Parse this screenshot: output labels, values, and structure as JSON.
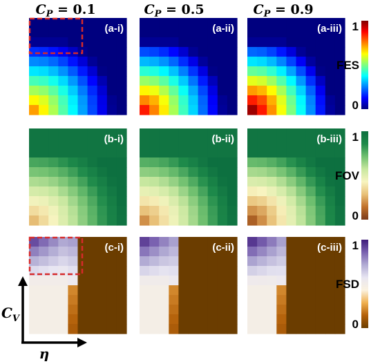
{
  "chart_data": {
    "type": "heatmap",
    "column_titles": [
      "C_P = 0.1",
      "C_P = 0.5",
      "C_P = 0.9"
    ],
    "column_title_parts": [
      {
        "var": "C",
        "sub": "P",
        "eq": "= 0.1"
      },
      {
        "var": "C",
        "sub": "P",
        "eq": "= 0.5"
      },
      {
        "var": "C",
        "sub": "P",
        "eq": "= 0.9"
      }
    ],
    "rows": [
      {
        "metric": "FES",
        "colormap": "jet",
        "colorbar_ticks": [
          "1",
          "0"
        ],
        "panel_labels": [
          "(a-i)",
          "(a-ii)",
          "(a-iii)"
        ],
        "peak_values": [
          0.72,
          0.85,
          0.97
        ]
      },
      {
        "metric": "FOV",
        "colormap": "green-yellow-brown",
        "colorbar_ticks": [
          "1",
          "0"
        ],
        "panel_labels": [
          "(b-i)",
          "(b-ii)",
          "(b-iii)"
        ],
        "peak_values": [
          0.28,
          0.2,
          0.1
        ]
      },
      {
        "metric": "FSD",
        "colormap": "purple-white-brown",
        "colorbar_ticks": [
          "1",
          "0"
        ],
        "panel_labels": [
          "(c-i)",
          "(c-ii)",
          "(c-iii)"
        ],
        "peak_values": [
          0.9,
          0.92,
          0.94
        ]
      }
    ],
    "xlabel": "η",
    "ylabel_var": "C",
    "ylabel_sub": "V",
    "highlight_color": "#d62a2a",
    "colors": {
      "jet": [
        "#00007f",
        "#0000ff",
        "#007fff",
        "#00ffff",
        "#7fff7f",
        "#ffff00",
        "#ff7f00",
        "#ff0000",
        "#7f0000"
      ],
      "fov": [
        "#7a3a1a",
        "#c0702a",
        "#e8c078",
        "#f8f4c0",
        "#c8e8a0",
        "#70c070",
        "#1e8a4a",
        "#0d7040"
      ],
      "fsd": [
        "#6b3d00",
        "#b3600a",
        "#f0b050",
        "#fbf2e0",
        "#e8e6f2",
        "#b2acd4",
        "#7a62b0",
        "#3e1a7a"
      ]
    }
  }
}
